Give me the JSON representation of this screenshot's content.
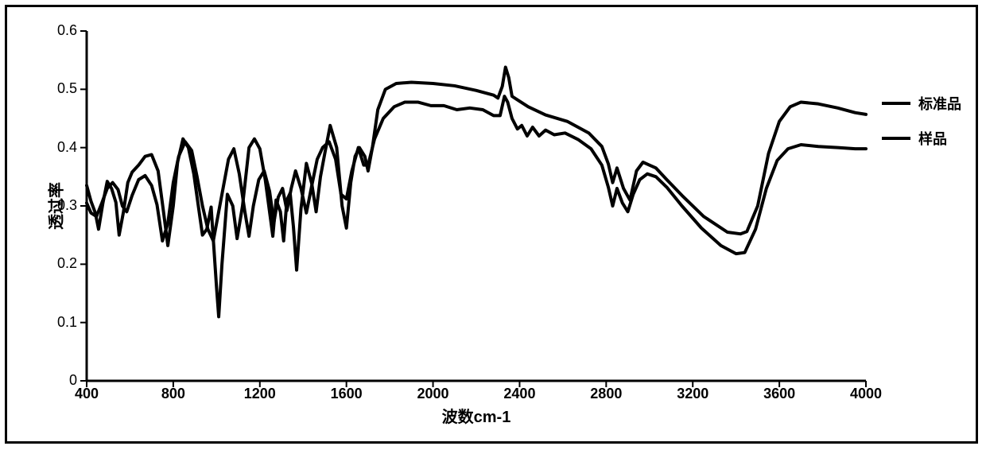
{
  "chart": {
    "type": "line",
    "xlabel": "波数cm-1",
    "ylabel": "透过率",
    "xlim": [
      400,
      4000
    ],
    "ylim": [
      0,
      0.6
    ],
    "xtick_start": 400,
    "xtick_step": 400,
    "ytick_start": 0,
    "ytick_step": 0.1,
    "background_color": "#ffffff",
    "axis_color": "#000000",
    "tick_length": 8,
    "axis_stroke_width": 3,
    "tick_fontsize": 18,
    "label_fontsize": 20,
    "line_width": 4,
    "legend": {
      "items": [
        {
          "label": "标准品",
          "color": "#000000"
        },
        {
          "label": "样品",
          "color": "#000000"
        }
      ]
    },
    "series": [
      {
        "name": "标准品",
        "color": "#000000",
        "points": [
          [
            400,
            0.335
          ],
          [
            420,
            0.308
          ],
          [
            440,
            0.288
          ],
          [
            455,
            0.26
          ],
          [
            475,
            0.305
          ],
          [
            495,
            0.342
          ],
          [
            515,
            0.33
          ],
          [
            535,
            0.306
          ],
          [
            550,
            0.25
          ],
          [
            570,
            0.29
          ],
          [
            590,
            0.34
          ],
          [
            610,
            0.358
          ],
          [
            640,
            0.37
          ],
          [
            670,
            0.385
          ],
          [
            700,
            0.388
          ],
          [
            730,
            0.36
          ],
          [
            755,
            0.29
          ],
          [
            775,
            0.232
          ],
          [
            800,
            0.3
          ],
          [
            820,
            0.375
          ],
          [
            845,
            0.415
          ],
          [
            870,
            0.4
          ],
          [
            895,
            0.355
          ],
          [
            915,
            0.302
          ],
          [
            935,
            0.25
          ],
          [
            955,
            0.26
          ],
          [
            975,
            0.298
          ],
          [
            1000,
            0.16
          ],
          [
            1010,
            0.11
          ],
          [
            1025,
            0.2
          ],
          [
            1050,
            0.32
          ],
          [
            1075,
            0.3
          ],
          [
            1095,
            0.244
          ],
          [
            1120,
            0.3
          ],
          [
            1150,
            0.4
          ],
          [
            1175,
            0.415
          ],
          [
            1200,
            0.398
          ],
          [
            1225,
            0.345
          ],
          [
            1250,
            0.276
          ],
          [
            1260,
            0.248
          ],
          [
            1275,
            0.31
          ],
          [
            1295,
            0.29
          ],
          [
            1310,
            0.24
          ],
          [
            1325,
            0.31
          ],
          [
            1340,
            0.322
          ],
          [
            1355,
            0.265
          ],
          [
            1370,
            0.19
          ],
          [
            1390,
            0.295
          ],
          [
            1415,
            0.373
          ],
          [
            1440,
            0.338
          ],
          [
            1460,
            0.29
          ],
          [
            1480,
            0.35
          ],
          [
            1500,
            0.39
          ],
          [
            1525,
            0.438
          ],
          [
            1555,
            0.4
          ],
          [
            1580,
            0.3
          ],
          [
            1600,
            0.262
          ],
          [
            1620,
            0.34
          ],
          [
            1640,
            0.385
          ],
          [
            1660,
            0.4
          ],
          [
            1685,
            0.385
          ],
          [
            1700,
            0.36
          ],
          [
            1720,
            0.4
          ],
          [
            1745,
            0.465
          ],
          [
            1780,
            0.5
          ],
          [
            1830,
            0.51
          ],
          [
            1900,
            0.512
          ],
          [
            2000,
            0.51
          ],
          [
            2100,
            0.506
          ],
          [
            2200,
            0.498
          ],
          [
            2280,
            0.49
          ],
          [
            2300,
            0.485
          ],
          [
            2320,
            0.505
          ],
          [
            2335,
            0.538
          ],
          [
            2350,
            0.52
          ],
          [
            2365,
            0.488
          ],
          [
            2390,
            0.482
          ],
          [
            2440,
            0.47
          ],
          [
            2520,
            0.456
          ],
          [
            2620,
            0.445
          ],
          [
            2720,
            0.425
          ],
          [
            2780,
            0.402
          ],
          [
            2810,
            0.372
          ],
          [
            2830,
            0.34
          ],
          [
            2850,
            0.365
          ],
          [
            2880,
            0.33
          ],
          [
            2910,
            0.31
          ],
          [
            2940,
            0.36
          ],
          [
            2970,
            0.375
          ],
          [
            3000,
            0.37
          ],
          [
            3030,
            0.365
          ],
          [
            3080,
            0.345
          ],
          [
            3150,
            0.318
          ],
          [
            3250,
            0.282
          ],
          [
            3360,
            0.255
          ],
          [
            3420,
            0.252
          ],
          [
            3450,
            0.256
          ],
          [
            3500,
            0.3
          ],
          [
            3550,
            0.39
          ],
          [
            3600,
            0.445
          ],
          [
            3650,
            0.47
          ],
          [
            3700,
            0.478
          ],
          [
            3780,
            0.475
          ],
          [
            3870,
            0.468
          ],
          [
            3950,
            0.46
          ],
          [
            4000,
            0.457
          ]
        ]
      },
      {
        "name": "样品",
        "color": "#000000",
        "points": [
          [
            400,
            0.305
          ],
          [
            420,
            0.288
          ],
          [
            445,
            0.282
          ],
          [
            470,
            0.305
          ],
          [
            495,
            0.33
          ],
          [
            520,
            0.34
          ],
          [
            545,
            0.328
          ],
          [
            565,
            0.3
          ],
          [
            585,
            0.29
          ],
          [
            610,
            0.318
          ],
          [
            640,
            0.345
          ],
          [
            670,
            0.352
          ],
          [
            700,
            0.335
          ],
          [
            725,
            0.302
          ],
          [
            750,
            0.24
          ],
          [
            775,
            0.27
          ],
          [
            800,
            0.34
          ],
          [
            825,
            0.385
          ],
          [
            855,
            0.41
          ],
          [
            885,
            0.395
          ],
          [
            910,
            0.35
          ],
          [
            935,
            0.3
          ],
          [
            960,
            0.26
          ],
          [
            985,
            0.24
          ],
          [
            1005,
            0.28
          ],
          [
            1030,
            0.33
          ],
          [
            1055,
            0.38
          ],
          [
            1080,
            0.398
          ],
          [
            1105,
            0.355
          ],
          [
            1130,
            0.292
          ],
          [
            1150,
            0.248
          ],
          [
            1170,
            0.3
          ],
          [
            1195,
            0.345
          ],
          [
            1220,
            0.36
          ],
          [
            1245,
            0.325
          ],
          [
            1265,
            0.272
          ],
          [
            1285,
            0.315
          ],
          [
            1305,
            0.33
          ],
          [
            1325,
            0.292
          ],
          [
            1345,
            0.33
          ],
          [
            1365,
            0.36
          ],
          [
            1390,
            0.33
          ],
          [
            1415,
            0.288
          ],
          [
            1440,
            0.335
          ],
          [
            1465,
            0.38
          ],
          [
            1490,
            0.4
          ],
          [
            1520,
            0.41
          ],
          [
            1550,
            0.38
          ],
          [
            1575,
            0.32
          ],
          [
            1600,
            0.312
          ],
          [
            1625,
            0.36
          ],
          [
            1655,
            0.4
          ],
          [
            1680,
            0.37
          ],
          [
            1700,
            0.37
          ],
          [
            1730,
            0.415
          ],
          [
            1770,
            0.45
          ],
          [
            1820,
            0.47
          ],
          [
            1870,
            0.478
          ],
          [
            1930,
            0.478
          ],
          [
            1990,
            0.472
          ],
          [
            2050,
            0.472
          ],
          [
            2110,
            0.465
          ],
          [
            2170,
            0.468
          ],
          [
            2230,
            0.465
          ],
          [
            2280,
            0.455
          ],
          [
            2310,
            0.455
          ],
          [
            2330,
            0.488
          ],
          [
            2345,
            0.478
          ],
          [
            2365,
            0.45
          ],
          [
            2390,
            0.432
          ],
          [
            2410,
            0.438
          ],
          [
            2435,
            0.42
          ],
          [
            2460,
            0.435
          ],
          [
            2490,
            0.42
          ],
          [
            2520,
            0.43
          ],
          [
            2560,
            0.422
          ],
          [
            2610,
            0.425
          ],
          [
            2670,
            0.414
          ],
          [
            2730,
            0.398
          ],
          [
            2780,
            0.37
          ],
          [
            2810,
            0.332
          ],
          [
            2830,
            0.3
          ],
          [
            2850,
            0.33
          ],
          [
            2875,
            0.305
          ],
          [
            2900,
            0.29
          ],
          [
            2925,
            0.32
          ],
          [
            2955,
            0.345
          ],
          [
            2990,
            0.355
          ],
          [
            3030,
            0.35
          ],
          [
            3080,
            0.332
          ],
          [
            3150,
            0.3
          ],
          [
            3240,
            0.262
          ],
          [
            3330,
            0.232
          ],
          [
            3400,
            0.218
          ],
          [
            3440,
            0.22
          ],
          [
            3490,
            0.26
          ],
          [
            3540,
            0.33
          ],
          [
            3590,
            0.378
          ],
          [
            3640,
            0.398
          ],
          [
            3700,
            0.405
          ],
          [
            3780,
            0.402
          ],
          [
            3870,
            0.4
          ],
          [
            3950,
            0.398
          ],
          [
            4000,
            0.398
          ]
        ]
      }
    ]
  }
}
